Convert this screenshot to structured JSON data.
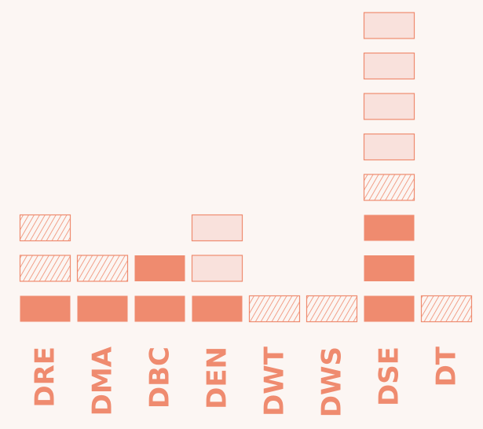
{
  "chart_data": {
    "type": "bar",
    "subtype": "stacked-waffle",
    "categories": [
      "DRE",
      "DMA",
      "DBC",
      "DEN",
      "DWT",
      "DWS",
      "DSE",
      "DT"
    ],
    "series": [
      {
        "style": "solid",
        "values": [
          1,
          1,
          2,
          1,
          0,
          0,
          3,
          0
        ]
      },
      {
        "style": "hatched",
        "values": [
          2,
          1,
          0,
          0,
          1,
          1,
          1,
          1
        ]
      },
      {
        "style": "light",
        "values": [
          0,
          0,
          0,
          2,
          0,
          0,
          4,
          0
        ]
      }
    ],
    "title": "",
    "xlabel": "",
    "ylabel": "",
    "grid": false,
    "legend": "none",
    "colors": {
      "accent": "#ef8b6f",
      "light_fill": "#f9e1dc",
      "background": "#fcf6f3"
    }
  }
}
